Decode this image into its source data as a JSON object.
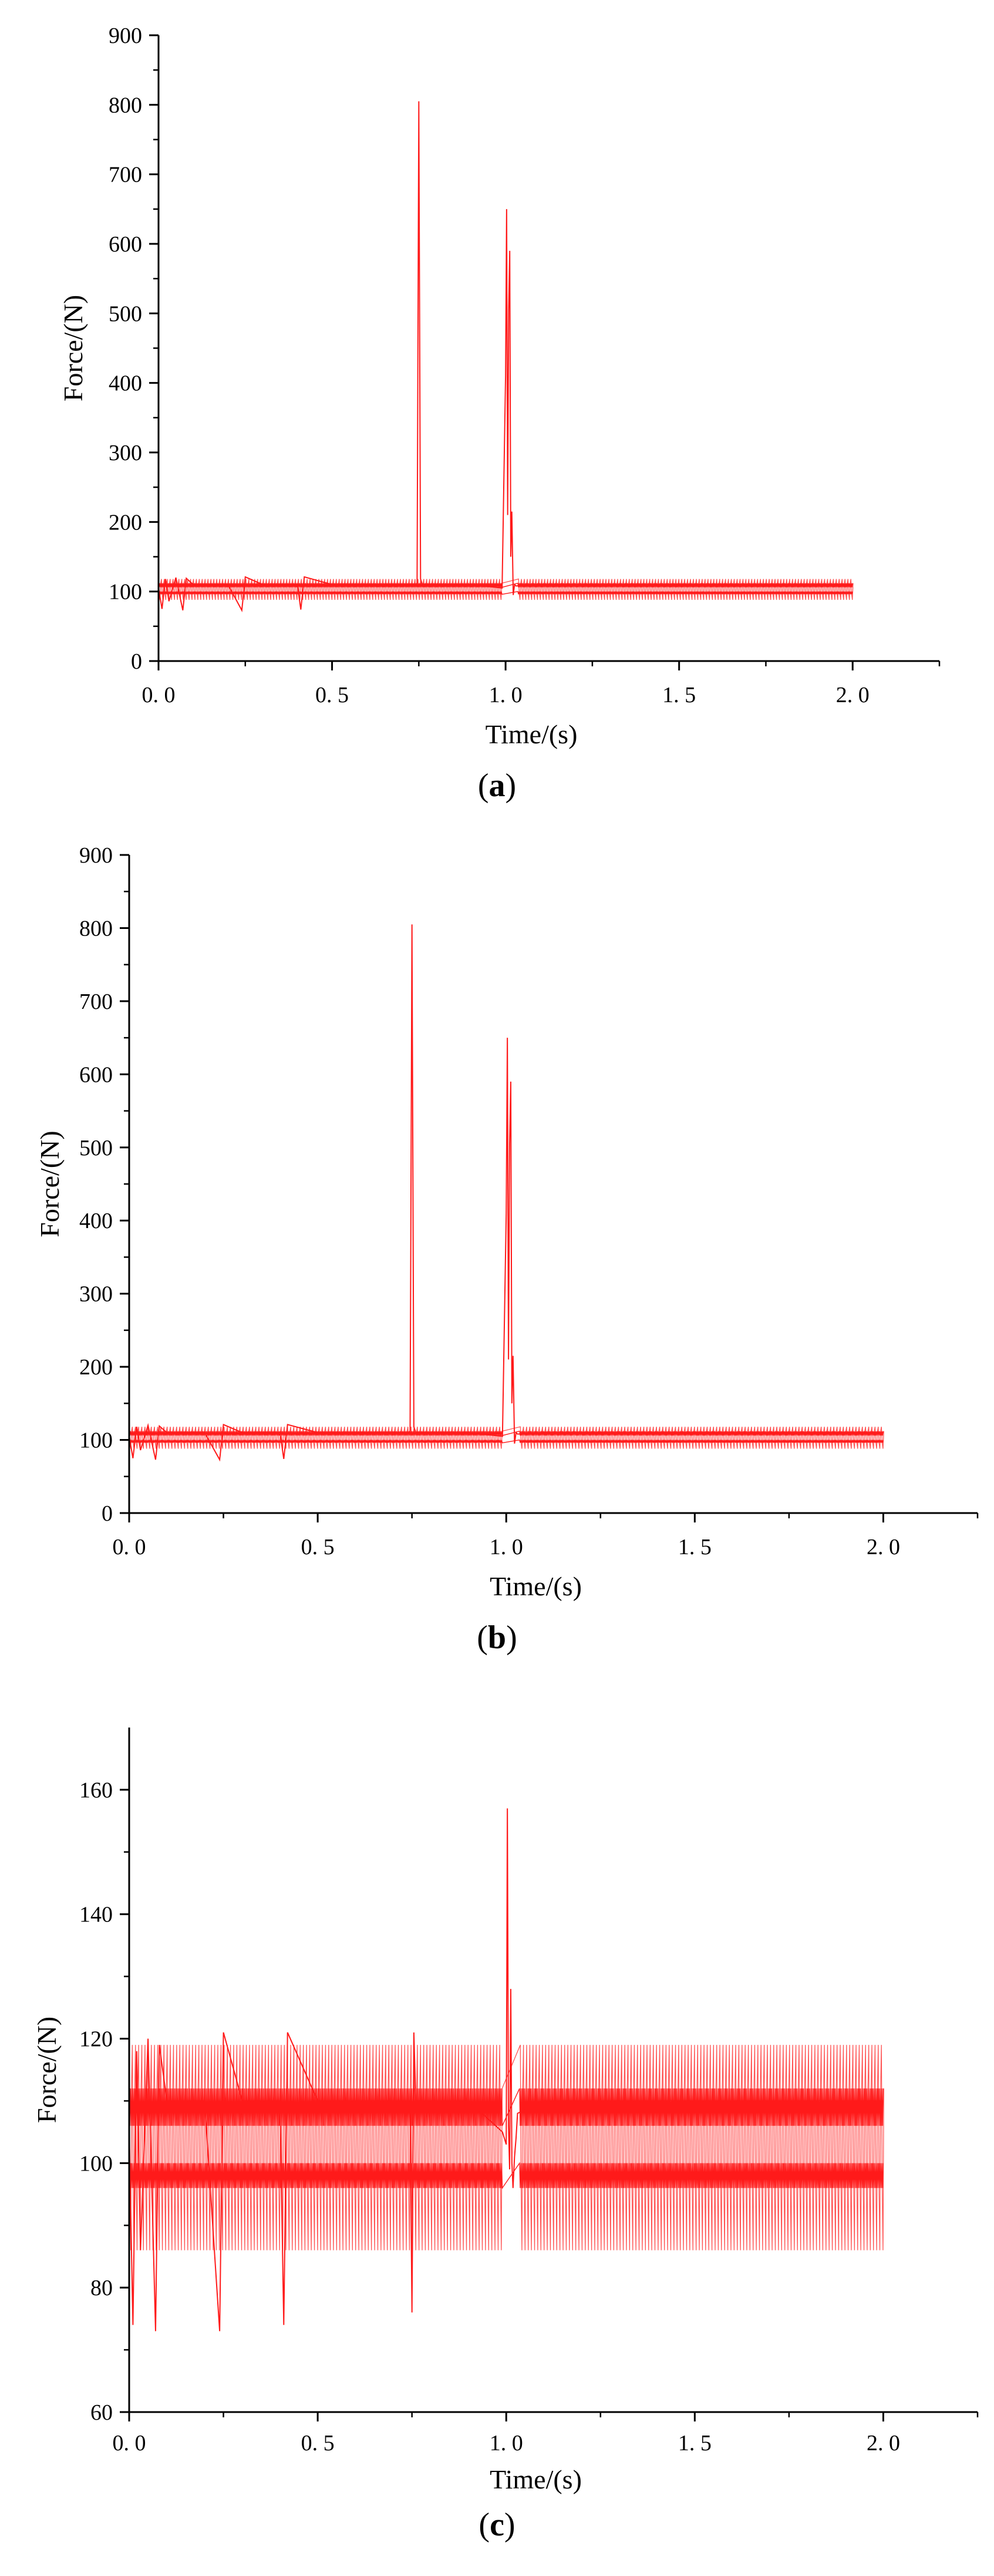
{
  "accent_color": "#ff1a1a",
  "chart_data": [
    {
      "type": "line",
      "caption": "a",
      "xlabel": "Time/(s)",
      "ylabel": "Force/(N)",
      "xlim": [
        0,
        2.25
      ],
      "ylim": [
        0,
        900
      ],
      "x_ticks": [
        "0. 0",
        "0. 5",
        "1. 0",
        "1. 5",
        "2. 0"
      ],
      "y_ticks": [
        "0",
        "100",
        "200",
        "300",
        "400",
        "500",
        "600",
        "700",
        "800",
        "900"
      ],
      "grid": false,
      "series": [
        {
          "color": "#ff1a1a",
          "x": [
            0.0,
            0.01,
            0.02,
            0.03,
            0.05,
            0.07,
            0.08,
            0.1,
            0.2,
            0.24,
            0.25,
            0.3,
            0.4,
            0.41,
            0.42,
            0.5,
            0.6,
            0.7,
            0.745,
            0.75,
            0.755,
            0.76,
            0.8,
            0.9,
            0.99,
            1.0,
            1.003,
            1.006,
            1.009,
            1.012,
            1.015,
            1.018,
            1.022,
            1.026,
            1.03,
            1.1,
            1.5,
            2.0
          ],
          "y": [
            105,
            75,
            118,
            86,
            120,
            73,
            119,
            110,
            110,
            73,
            121,
            110,
            110,
            74,
            121,
            110,
            110,
            110,
            110,
            805,
            118,
            110,
            110,
            110,
            105,
            410,
            650,
            210,
            505,
            590,
            150,
            215,
            95,
            110,
            108,
            110,
            110,
            110
          ]
        }
      ]
    },
    {
      "type": "line",
      "caption": "b",
      "xlabel": "Time/(s)",
      "ylabel": "Force/(N)",
      "xlim": [
        0,
        2.25
      ],
      "ylim": [
        0,
        900
      ],
      "x_ticks": [
        "0. 0",
        "0. 5",
        "1. 0",
        "1. 5",
        "2. 0"
      ],
      "y_ticks": [
        "0",
        "100",
        "200",
        "300",
        "400",
        "500",
        "600",
        "700",
        "800",
        "900"
      ],
      "grid": false,
      "series": [
        {
          "color": "#ff1a1a",
          "x": [
            0.0,
            0.01,
            0.02,
            0.03,
            0.05,
            0.07,
            0.08,
            0.1,
            0.2,
            0.24,
            0.25,
            0.3,
            0.4,
            0.41,
            0.42,
            0.5,
            0.6,
            0.7,
            0.745,
            0.75,
            0.755,
            0.76,
            0.8,
            0.9,
            0.99,
            1.0,
            1.003,
            1.006,
            1.009,
            1.012,
            1.015,
            1.018,
            1.022,
            1.026,
            1.03,
            1.1,
            1.5,
            2.0
          ],
          "y": [
            105,
            75,
            118,
            86,
            120,
            73,
            119,
            110,
            110,
            73,
            121,
            110,
            110,
            74,
            121,
            110,
            110,
            110,
            110,
            805,
            118,
            110,
            110,
            110,
            105,
            410,
            650,
            210,
            505,
            590,
            150,
            215,
            95,
            110,
            108,
            110,
            110,
            110
          ]
        }
      ]
    },
    {
      "type": "line",
      "caption": "c",
      "xlabel": "Time/(s)",
      "ylabel": "Force/(N)",
      "xlim": [
        0,
        2.25
      ],
      "ylim": [
        60,
        170
      ],
      "x_ticks": [
        "0. 0",
        "0. 5",
        "1. 0",
        "1. 5",
        "2. 0"
      ],
      "y_ticks": [
        "60",
        "80",
        "100",
        "120",
        "140",
        "160"
      ],
      "grid": false,
      "series": [
        {
          "color": "#ff1a1a",
          "x": [
            0.0,
            0.01,
            0.02,
            0.03,
            0.05,
            0.07,
            0.08,
            0.1,
            0.2,
            0.24,
            0.25,
            0.3,
            0.4,
            0.41,
            0.42,
            0.5,
            0.6,
            0.7,
            0.745,
            0.75,
            0.755,
            0.76,
            0.8,
            0.9,
            0.99,
            1.0,
            1.003,
            1.006,
            1.009,
            1.012,
            1.015,
            1.018,
            1.022,
            1.026,
            1.03,
            1.1,
            1.5,
            2.0
          ],
          "y": [
            105,
            74,
            118,
            86,
            120,
            73,
            119,
            110,
            110,
            73,
            121,
            110,
            110,
            74,
            121,
            110,
            110,
            110,
            110,
            76,
            121,
            110,
            110,
            110,
            105,
            103,
            157,
            106,
            99,
            128,
            100,
            96,
            101,
            104,
            108,
            110,
            110,
            110
          ]
        }
      ]
    }
  ]
}
